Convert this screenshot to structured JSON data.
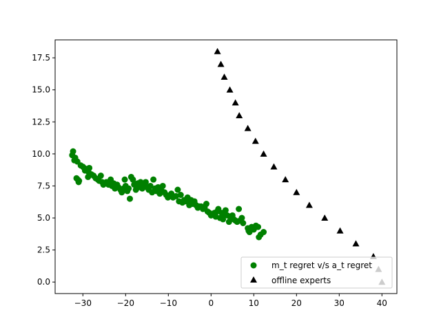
{
  "chart_data": {
    "type": "scatter",
    "title": "",
    "xlabel": "",
    "ylabel": "",
    "xlim": [
      -36.5,
      43.5
    ],
    "ylim": [
      -0.9,
      18.9
    ],
    "xticks": [
      -30,
      -20,
      -10,
      0,
      10,
      20,
      30,
      40
    ],
    "xtick_labels": [
      "−30",
      "−20",
      "−10",
      "0",
      "10",
      "20",
      "30",
      "40"
    ],
    "yticks": [
      0.0,
      2.5,
      5.0,
      7.5,
      10.0,
      12.5,
      15.0,
      17.5
    ],
    "ytick_labels": [
      "0.0",
      "2.5",
      "5.0",
      "7.5",
      "10.0",
      "12.5",
      "15.0",
      "17.5"
    ],
    "grid": false,
    "legend_position": "lower-right",
    "series": [
      {
        "name": "m_t regret v/s a_t regret",
        "marker": "circle",
        "color": "#008000",
        "points": [
          [
            -32.3,
            10.2
          ],
          [
            -32.5,
            9.9
          ],
          [
            -31.8,
            9.7
          ],
          [
            -32.0,
            9.5
          ],
          [
            -31.3,
            9.4
          ],
          [
            -31.5,
            8.1
          ],
          [
            -31.2,
            8.0
          ],
          [
            -30.9,
            7.9
          ],
          [
            -31.0,
            7.8
          ],
          [
            -30.5,
            9.1
          ],
          [
            -30.0,
            9.0
          ],
          [
            -29.7,
            8.9
          ],
          [
            -29.5,
            8.7
          ],
          [
            -28.7,
            8.6
          ],
          [
            -28.5,
            8.9
          ],
          [
            -28.0,
            8.4
          ],
          [
            -28.8,
            8.2
          ],
          [
            -27.5,
            8.3
          ],
          [
            -27.0,
            8.1
          ],
          [
            -26.5,
            8.0
          ],
          [
            -26.2,
            7.9
          ],
          [
            -25.8,
            8.3
          ],
          [
            -25.5,
            7.8
          ],
          [
            -25.2,
            7.6
          ],
          [
            -24.8,
            7.7
          ],
          [
            -24.5,
            7.8
          ],
          [
            -24.0,
            7.6
          ],
          [
            -23.5,
            8.0
          ],
          [
            -23.2,
            7.5
          ],
          [
            -22.8,
            7.7
          ],
          [
            -22.5,
            7.3
          ],
          [
            -22.0,
            7.6
          ],
          [
            -21.7,
            7.4
          ],
          [
            -21.2,
            7.2
          ],
          [
            -20.9,
            7.0
          ],
          [
            -20.5,
            7.3
          ],
          [
            -20.2,
            8.0
          ],
          [
            -20.0,
            7.5
          ],
          [
            -19.6,
            7.1
          ],
          [
            -19.3,
            7.3
          ],
          [
            -19.0,
            6.5
          ],
          [
            -18.7,
            8.2
          ],
          [
            -18.3,
            8.0
          ],
          [
            -18.0,
            7.6
          ],
          [
            -17.6,
            7.2
          ],
          [
            -17.2,
            7.7
          ],
          [
            -16.9,
            7.4
          ],
          [
            -16.5,
            7.8
          ],
          [
            -16.1,
            7.3
          ],
          [
            -15.7,
            7.6
          ],
          [
            -15.3,
            7.8
          ],
          [
            -15.0,
            7.4
          ],
          [
            -14.6,
            7.2
          ],
          [
            -14.2,
            7.5
          ],
          [
            -13.8,
            7.0
          ],
          [
            -13.5,
            8.0
          ],
          [
            -13.1,
            7.3
          ],
          [
            -12.8,
            7.1
          ],
          [
            -12.4,
            7.4
          ],
          [
            -12.0,
            6.9
          ],
          [
            -11.7,
            7.2
          ],
          [
            -11.3,
            7.5
          ],
          [
            -10.9,
            7.0
          ],
          [
            -10.5,
            6.8
          ],
          [
            -10.1,
            6.6
          ],
          [
            -9.7,
            6.7
          ],
          [
            -9.3,
            6.9
          ],
          [
            -8.9,
            6.6
          ],
          [
            -8.2,
            6.7
          ],
          [
            -7.8,
            7.2
          ],
          [
            -7.5,
            6.3
          ],
          [
            -7.1,
            6.8
          ],
          [
            -6.7,
            6.2
          ],
          [
            -6.3,
            6.4
          ],
          [
            -5.9,
            6.3
          ],
          [
            -5.5,
            6.6
          ],
          [
            -5.1,
            6.0
          ],
          [
            -4.7,
            6.4
          ],
          [
            -4.3,
            6.1
          ],
          [
            -3.9,
            6.3
          ],
          [
            -3.5,
            6.0
          ],
          [
            -3.1,
            5.8
          ],
          [
            -2.7,
            5.9
          ],
          [
            -2.3,
            5.9
          ],
          [
            -1.9,
            5.7
          ],
          [
            -1.5,
            5.8
          ],
          [
            -1.1,
            6.1
          ],
          [
            -0.8,
            5.5
          ],
          [
            -0.4,
            5.4
          ],
          [
            0.0,
            5.2
          ],
          [
            0.4,
            5.3
          ],
          [
            0.8,
            5.4
          ],
          [
            1.1,
            5.1
          ],
          [
            1.4,
            5.5
          ],
          [
            1.7,
            5.7
          ],
          [
            2.1,
            5.0
          ],
          [
            2.5,
            5.4
          ],
          [
            2.8,
            4.9
          ],
          [
            3.1,
            5.3
          ],
          [
            3.4,
            5.6
          ],
          [
            3.8,
            5.2
          ],
          [
            4.2,
            4.7
          ],
          [
            4.6,
            5.0
          ],
          [
            5.0,
            5.2
          ],
          [
            5.3,
            4.9
          ],
          [
            5.7,
            4.8
          ],
          [
            6.1,
            4.7
          ],
          [
            6.5,
            5.7
          ],
          [
            6.8,
            4.8
          ],
          [
            7.2,
            5.0
          ],
          [
            7.5,
            4.6
          ],
          [
            8.6,
            4.2
          ],
          [
            9.0,
            3.9
          ],
          [
            9.5,
            4.3
          ],
          [
            10.0,
            4.1
          ],
          [
            10.5,
            4.4
          ],
          [
            11.2,
            3.5
          ],
          [
            11.6,
            3.7
          ],
          [
            12.3,
            3.9
          ],
          [
            11.0,
            4.3
          ],
          [
            8.8,
            4.0
          ]
        ]
      },
      {
        "name": "offline experts",
        "marker": "triangle",
        "color": "#000000",
        "points": [
          [
            1.5,
            18.0
          ],
          [
            2.3,
            17.0
          ],
          [
            3.1,
            16.0
          ],
          [
            4.4,
            15.0
          ],
          [
            5.7,
            14.0
          ],
          [
            6.6,
            13.0
          ],
          [
            8.6,
            12.0
          ],
          [
            10.4,
            11.0
          ],
          [
            12.3,
            10.0
          ],
          [
            14.7,
            9.0
          ],
          [
            17.4,
            8.0
          ],
          [
            20.0,
            7.0
          ],
          [
            23.0,
            6.0
          ],
          [
            26.6,
            5.0
          ],
          [
            30.2,
            4.0
          ],
          [
            33.9,
            3.0
          ],
          [
            38.0,
            2.0
          ],
          [
            39.2,
            1.0
          ],
          [
            40.0,
            0.0
          ]
        ]
      }
    ]
  }
}
